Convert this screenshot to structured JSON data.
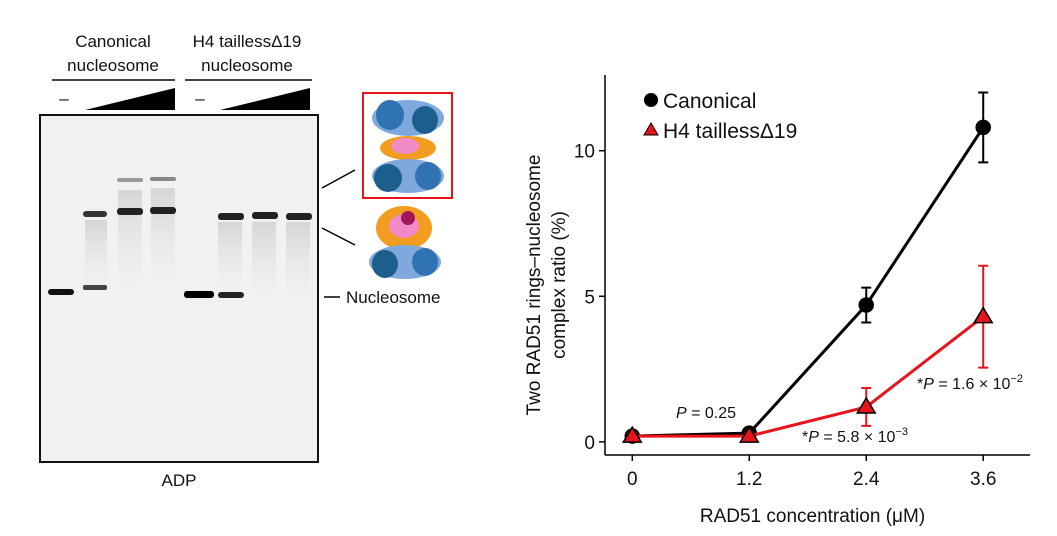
{
  "gel": {
    "groups": [
      {
        "lines": [
          "Canonical",
          "nucleosome"
        ],
        "minus": "–"
      },
      {
        "lines": [
          "H4 taillessΔ19",
          "nucleosome"
        ],
        "minus": "–"
      }
    ],
    "band_label": "Nucleosome",
    "condition": "ADP"
  },
  "chart_data": {
    "type": "line",
    "xlabel": "RAD51 concentration (μM)",
    "ylabel": [
      "Two RAD51 rings–nucleosome",
      "complex ratio (%)"
    ],
    "x": [
      0,
      1.2,
      2.4,
      3.6
    ],
    "xlim": [
      -0.28,
      4.08
    ],
    "xticks": [
      0,
      1.2,
      2.4,
      3.6
    ],
    "ylim": [
      -0.45,
      12.6
    ],
    "yticks": [
      0,
      5,
      10
    ],
    "legend": "upper left",
    "series": [
      {
        "name": "Canonical",
        "color": "#000000",
        "marker": "circle",
        "values": [
          0.2,
          0.3,
          4.7,
          10.8
        ],
        "errors": [
          0.1,
          0.1,
          0.6,
          1.2
        ]
      },
      {
        "name": "H4 taillessΔ19",
        "color": "#e8141b",
        "marker": "triangle",
        "values": [
          0.2,
          0.2,
          1.2,
          4.3
        ],
        "errors": [
          0.1,
          0.1,
          0.65,
          1.75
        ]
      }
    ],
    "annotations": [
      {
        "italic": "P",
        "text": " = 0.25"
      },
      {
        "star": "*",
        "italic": "P",
        "text": " = 5.8 × 10",
        "sup": "−3"
      },
      {
        "star": "*",
        "italic": "P",
        "text": " = 1.6 × 10",
        "sup": "−2"
      }
    ]
  }
}
